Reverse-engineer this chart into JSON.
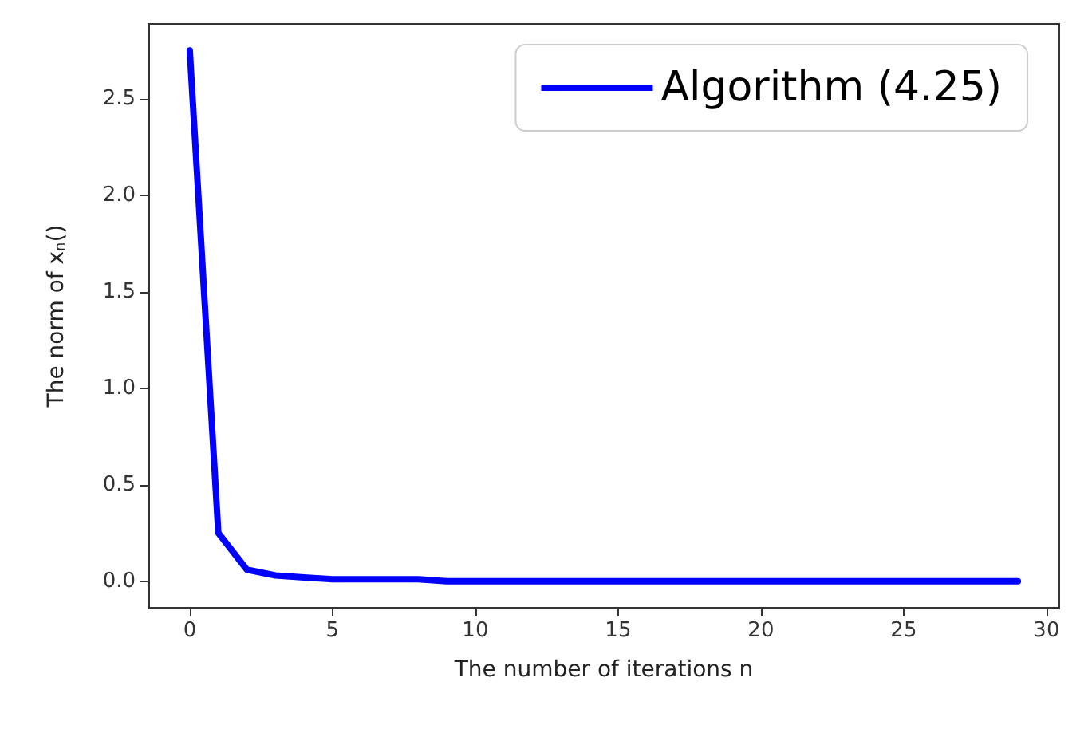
{
  "chart_data": {
    "type": "line",
    "xlabel": "The number of iterations n",
    "ylabel": "The norm of x$_{n}$()",
    "x": [
      0,
      1,
      2,
      3,
      4,
      5,
      6,
      7,
      8,
      9,
      10,
      11,
      12,
      13,
      14,
      15,
      16,
      17,
      18,
      19,
      20,
      21,
      22,
      23,
      24,
      25,
      26,
      27,
      28,
      29
    ],
    "series": [
      {
        "name": "Algorithm (4.25)",
        "color": "#0000ff",
        "values": [
          2.75,
          0.25,
          0.06,
          0.03,
          0.02,
          0.01,
          0.01,
          0.01,
          0.01,
          0,
          0,
          0,
          0,
          0,
          0,
          0,
          0,
          0,
          0,
          0,
          0,
          0,
          0,
          0,
          0,
          0,
          0,
          0,
          0,
          0
        ]
      }
    ],
    "xlim": [
      -1.45,
      30.45
    ],
    "xticks": [
      0,
      5,
      10,
      15,
      20,
      25,
      30
    ],
    "ylim": [
      -0.1375,
      2.8875
    ],
    "yticks": [
      {
        "value": 0,
        "label": "0.0"
      },
      0.5,
      {
        "value": 1,
        "label": "1.0"
      },
      1.5,
      {
        "value": 2,
        "label": "2.0"
      },
      2.5
    ],
    "grid": false,
    "legend": "top right",
    "marker": "none",
    "line_style": "solid"
  }
}
